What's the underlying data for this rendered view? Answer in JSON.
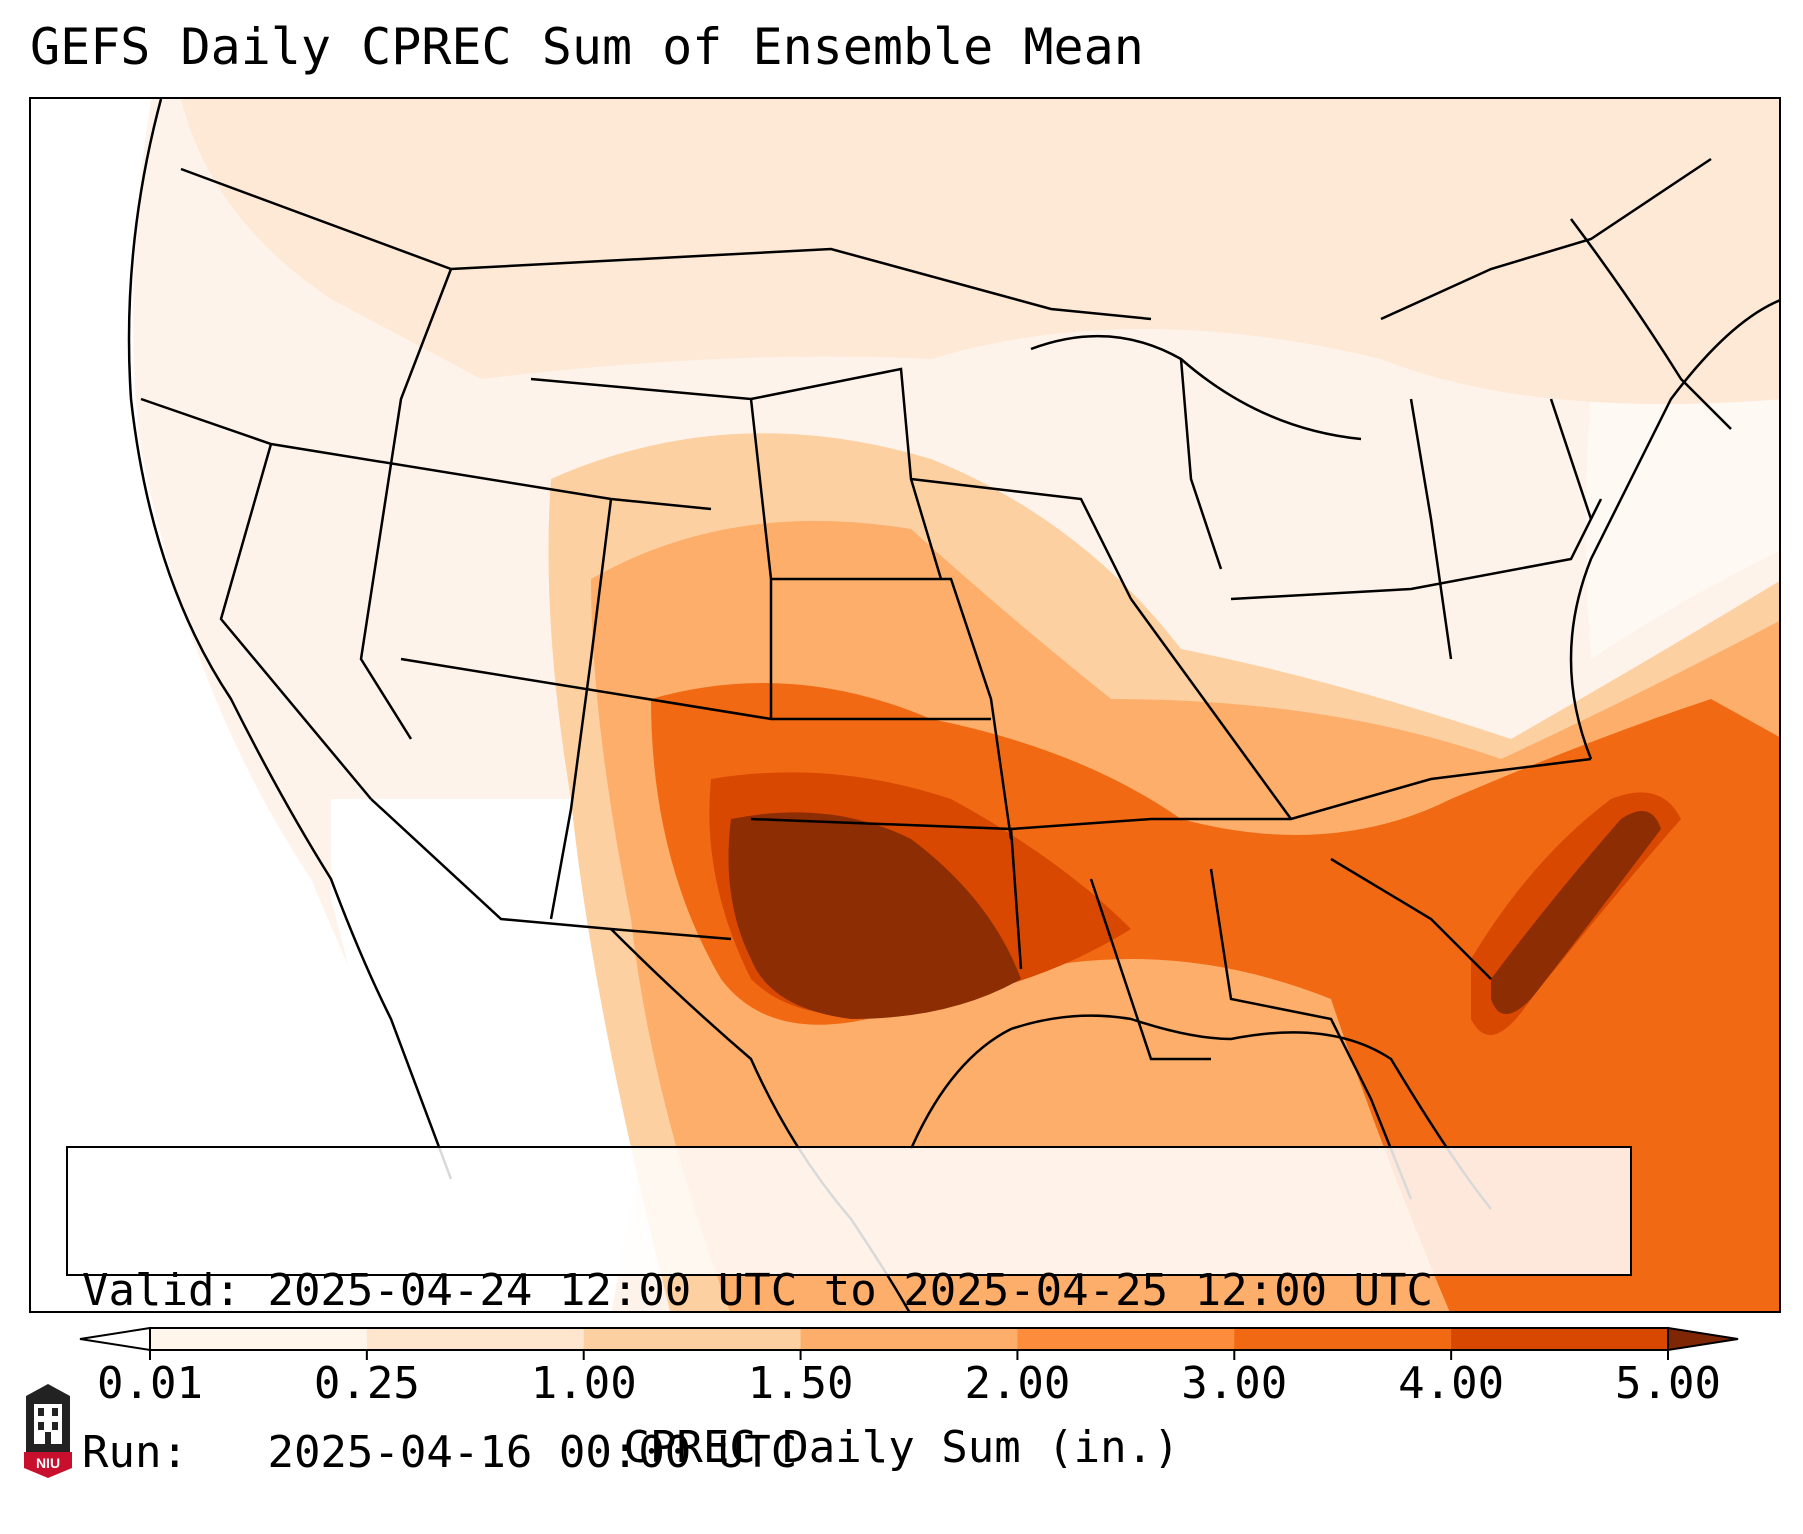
{
  "title": "GEFS Daily CPREC Sum of Ensemble Mean",
  "info": {
    "valid_label": "Valid:",
    "valid_value": "2025-04-24 12:00 UTC to 2025-04-25 12:00 UTC",
    "run_label": "Run:",
    "run_value": "2025-04-16 00:00 UTC"
  },
  "colorbar": {
    "label": "CPREC Daily Sum (in.)",
    "ticks": [
      "0.01",
      "0.25",
      "1.00",
      "1.50",
      "2.00",
      "3.00",
      "4.00",
      "5.00"
    ],
    "colors": [
      "#fff5eb",
      "#fee6ce",
      "#fdd0a2",
      "#fdae6b",
      "#fd8d3c",
      "#f16913",
      "#d94801",
      "#8c2d04"
    ],
    "under_color": "#ffffff",
    "over_color": "#7f2704",
    "extend": "both"
  },
  "map": {
    "region": "Contiguous United States",
    "field": "GEFS ensemble mean convective precipitation, daily sum",
    "max_region": "Texas / Oklahoma",
    "colors": {
      "land_lowest": "#fef3ea",
      "ocean_none": "#ffffff",
      "level_1": "#fee6ce",
      "level_2": "#fdd0a2",
      "level_3": "#fdae6b",
      "level_4": "#f16913",
      "level_5": "#d94801",
      "level_max": "#8c2d04",
      "boundaries": "#000000"
    }
  },
  "logo": {
    "text": "NIU",
    "color": "#c8102e"
  }
}
